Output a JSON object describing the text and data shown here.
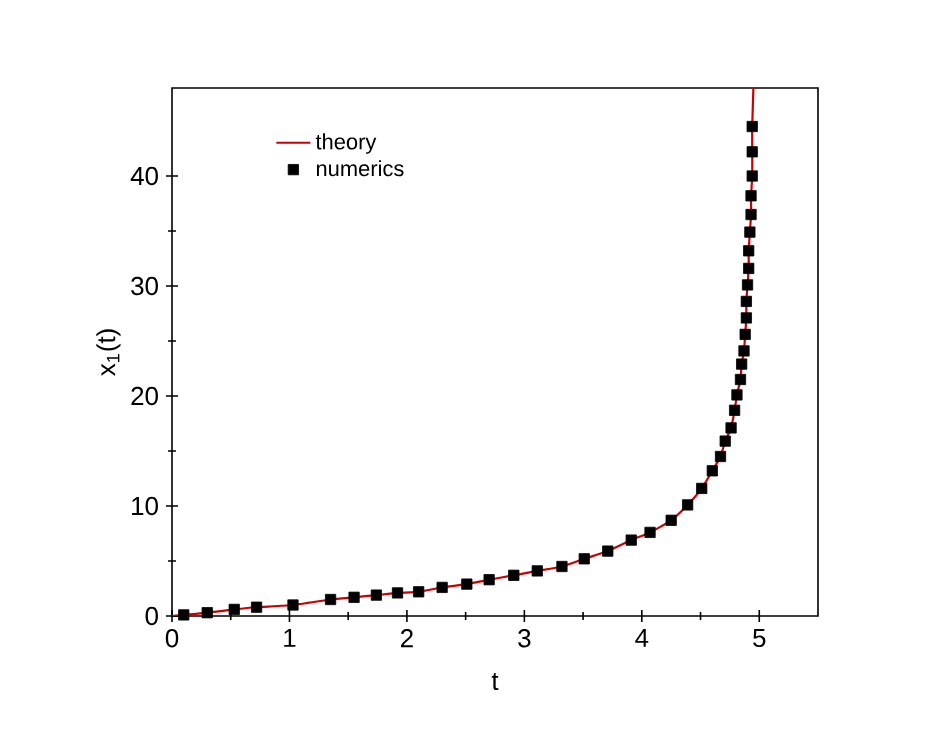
{
  "chart_data": {
    "type": "line",
    "xlabel": "t",
    "ylabel": "x$_{1}$(t)",
    "xlim": [
      0,
      5.5
    ],
    "ylim": [
      0,
      48
    ],
    "xticks": [
      0,
      1,
      2,
      3,
      4,
      5
    ],
    "yticks": [
      0,
      10,
      20,
      30,
      40
    ],
    "grid": false,
    "legend": "top left",
    "series": [
      {
        "name": "theory",
        "color": "#cc0000",
        "marker": "none",
        "x": [
          0,
          0.1,
          0.3,
          0.53,
          0.72,
          1.03,
          1.35,
          1.55,
          1.74,
          1.92,
          2.1,
          2.3,
          2.51,
          2.7,
          2.91,
          3.11,
          3.32,
          3.51,
          3.71,
          3.91,
          4.07,
          4.25,
          4.39,
          4.51,
          4.6,
          4.67,
          4.71,
          4.76,
          4.79,
          4.81,
          4.84,
          4.85,
          4.87,
          4.88,
          4.89,
          4.89,
          4.9,
          4.91,
          4.91,
          4.92,
          4.93,
          4.93,
          4.94,
          4.94,
          4.94,
          4.95
        ],
        "values": [
          0,
          0.1,
          0.3,
          0.6,
          0.8,
          1.0,
          1.5,
          1.7,
          1.9,
          2.1,
          2.2,
          2.6,
          2.9,
          3.3,
          3.7,
          4.1,
          4.5,
          5.2,
          5.9,
          6.9,
          7.6,
          8.7,
          10.1,
          11.6,
          13.2,
          14.5,
          15.9,
          17.1,
          18.7,
          20.1,
          21.5,
          22.9,
          24.1,
          25.6,
          27.1,
          28.6,
          30.1,
          31.6,
          33.2,
          34.9,
          36.5,
          38.2,
          40.0,
          42.2,
          44.5,
          48
        ]
      },
      {
        "name": "numerics",
        "type": "scatter",
        "color": "#000000",
        "marker": "square",
        "x": [
          0.1,
          0.3,
          0.53,
          0.72,
          1.03,
          1.35,
          1.55,
          1.74,
          1.92,
          2.1,
          2.3,
          2.51,
          2.7,
          2.91,
          3.11,
          3.32,
          3.51,
          3.71,
          3.91,
          4.07,
          4.25,
          4.39,
          4.51,
          4.6,
          4.67,
          4.71,
          4.76,
          4.79,
          4.81,
          4.84,
          4.85,
          4.87,
          4.88,
          4.89,
          4.89,
          4.9,
          4.91,
          4.91,
          4.92,
          4.93,
          4.93,
          4.94,
          4.94,
          4.94
        ],
        "values": [
          0.1,
          0.3,
          0.6,
          0.8,
          1.0,
          1.5,
          1.7,
          1.9,
          2.1,
          2.2,
          2.6,
          2.9,
          3.3,
          3.7,
          4.1,
          4.5,
          5.2,
          5.9,
          6.9,
          7.6,
          8.7,
          10.1,
          11.6,
          13.2,
          14.5,
          15.9,
          17.1,
          18.7,
          20.1,
          21.5,
          22.9,
          24.1,
          25.6,
          27.1,
          28.6,
          30.1,
          31.6,
          33.2,
          34.9,
          36.5,
          38.2,
          40.0,
          42.2,
          44.5
        ]
      }
    ]
  }
}
